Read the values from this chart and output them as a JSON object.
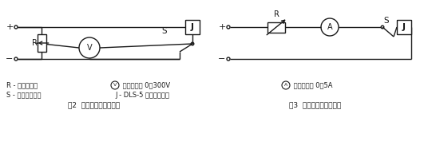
{
  "bg_color": "#ffffff",
  "line_color": "#1a1a1a",
  "line_width": 1.0,
  "fig_width": 5.36,
  "fig_height": 1.82,
  "dpi": 100,
  "legend_col1_line1": "R - 滑線電阻器",
  "legend_col1_line2": "S - 單刀單擲開關",
  "legend_col2_line1": "直流電壓表 0～300V",
  "legend_col2_line2": "J - DLS-5 雙位置繼電器",
  "legend_col3_line1": "直流電流表 0～5A",
  "caption1": "圖2  動作電壓檢驗線路圖",
  "caption2": "圖3  動作電流檢驗線路圖",
  "font_size": 6.0,
  "caption_font_size": 6.5
}
